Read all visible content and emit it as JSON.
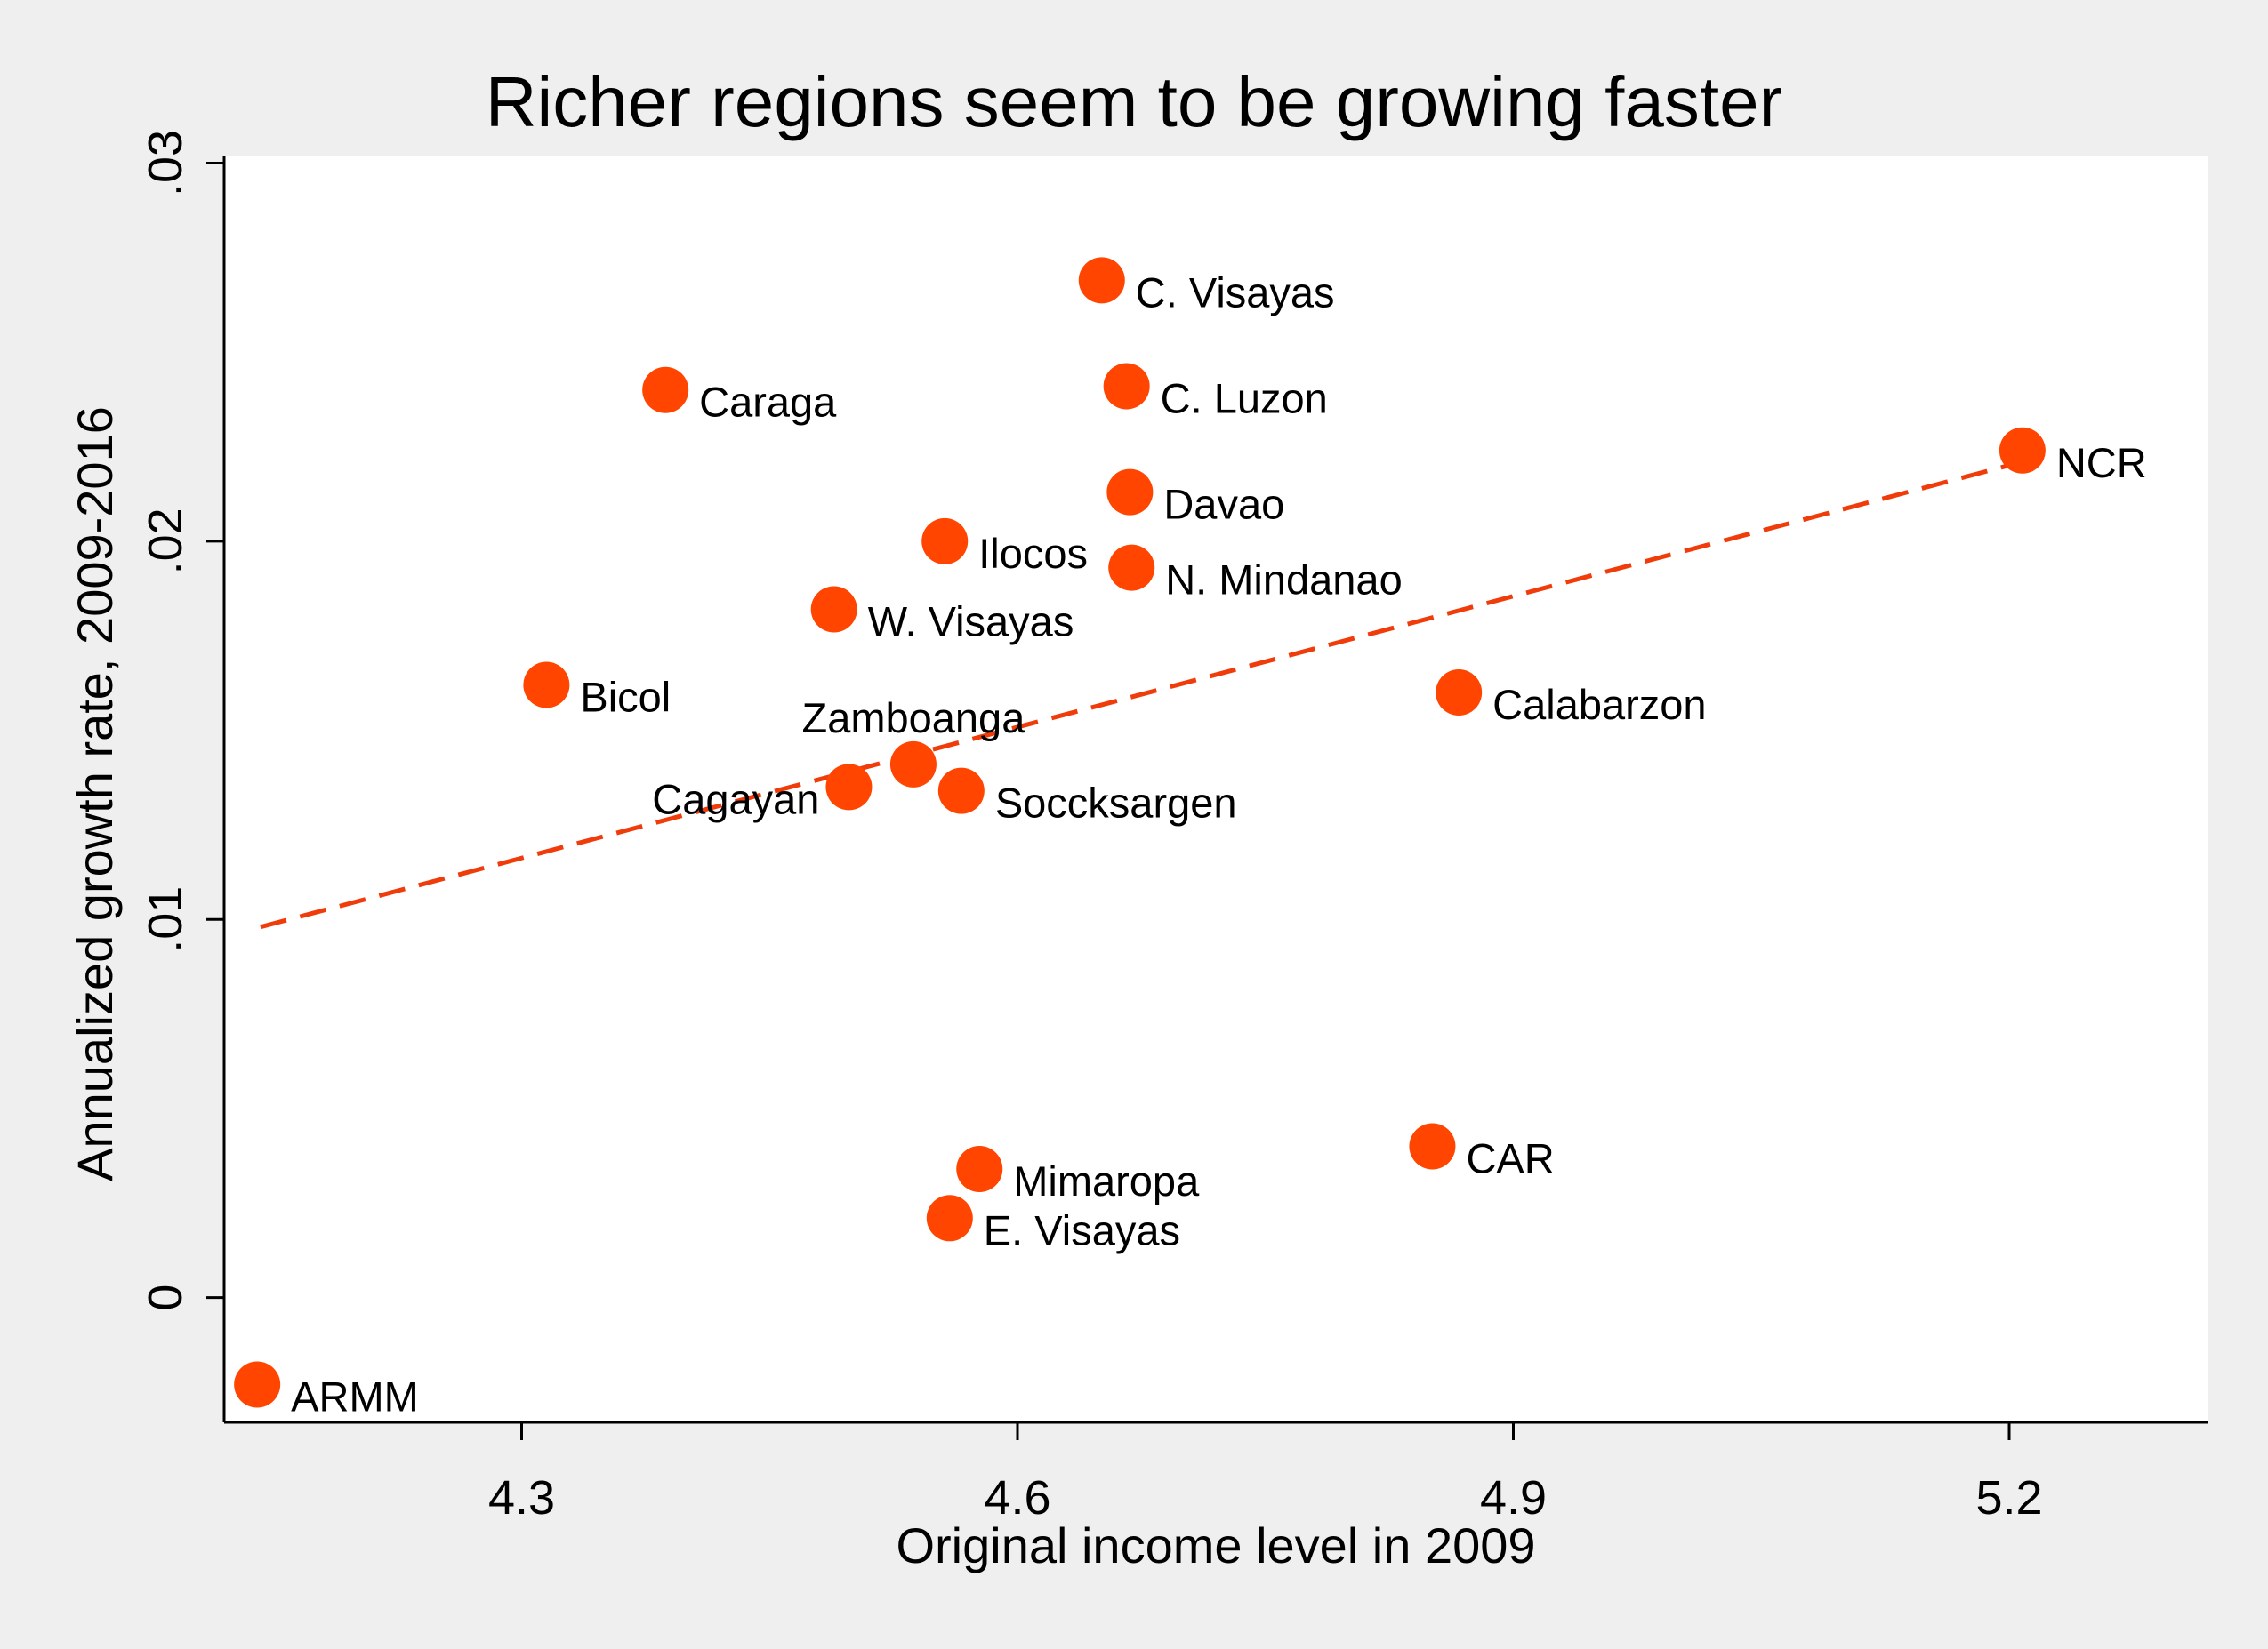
{
  "chart_data": {
    "type": "scatter",
    "title": "Richer regions seem to be growing faster",
    "xlabel": "Original income level in 2009",
    "ylabel": "Annualized growth rate, 2009-2016",
    "xlim": [
      4.12,
      5.32
    ],
    "ylim": [
      -0.0033,
      0.0302
    ],
    "x_ticks": [
      4.3,
      4.6,
      4.9,
      5.2
    ],
    "x_tick_labels": [
      "4.3",
      "4.6",
      "4.9",
      "5.2"
    ],
    "y_ticks": [
      0,
      0.01,
      0.02,
      0.03
    ],
    "y_tick_labels": [
      "0",
      ".01",
      ".02",
      ".03"
    ],
    "grid": false,
    "colors": {
      "marker": "#ff4500",
      "fit_line": "#f03c0a",
      "plot_background": "#ffffff",
      "page_background": "#efefef"
    },
    "points": [
      {
        "label": "C. Visayas",
        "x": 4.651,
        "y": 0.0269,
        "label_side": "right"
      },
      {
        "label": "Caraga",
        "x": 4.387,
        "y": 0.024,
        "label_side": "right"
      },
      {
        "label": "C. Luzon",
        "x": 4.666,
        "y": 0.0241,
        "label_side": "right"
      },
      {
        "label": "NCR",
        "x": 5.208,
        "y": 0.0224,
        "label_side": "right"
      },
      {
        "label": "Davao",
        "x": 4.668,
        "y": 0.0213,
        "label_side": "right"
      },
      {
        "label": "Ilocos",
        "x": 4.556,
        "y": 0.02,
        "label_side": "right"
      },
      {
        "label": "N. Mindanao",
        "x": 4.669,
        "y": 0.0193,
        "label_side": "right"
      },
      {
        "label": "W. Visayas",
        "x": 4.489,
        "y": 0.0182,
        "label_side": "right"
      },
      {
        "label": "Bicol",
        "x": 4.315,
        "y": 0.0162,
        "label_side": "right"
      },
      {
        "label": "Calabarzon",
        "x": 4.867,
        "y": 0.016,
        "label_side": "right"
      },
      {
        "label": "Zamboanga",
        "x": 4.537,
        "y": 0.0141,
        "label_side": "above"
      },
      {
        "label": "Cagayan",
        "x": 4.498,
        "y": 0.0135,
        "label_side": "left"
      },
      {
        "label": "Soccksargen",
        "x": 4.566,
        "y": 0.0134,
        "label_side": "right"
      },
      {
        "label": "Mimaropa",
        "x": 4.577,
        "y": 0.0034,
        "label_side": "right"
      },
      {
        "label": "CAR",
        "x": 4.851,
        "y": 0.004,
        "label_side": "right"
      },
      {
        "label": "E. Visayas",
        "x": 4.559,
        "y": 0.0021,
        "label_side": "right"
      },
      {
        "label": "ARMM",
        "x": 4.14,
        "y": -0.0023,
        "label_side": "right"
      }
    ],
    "fit_line": {
      "style": "dashed",
      "x": [
        4.142,
        5.208
      ],
      "y": [
        0.0098,
        0.0221
      ]
    }
  }
}
